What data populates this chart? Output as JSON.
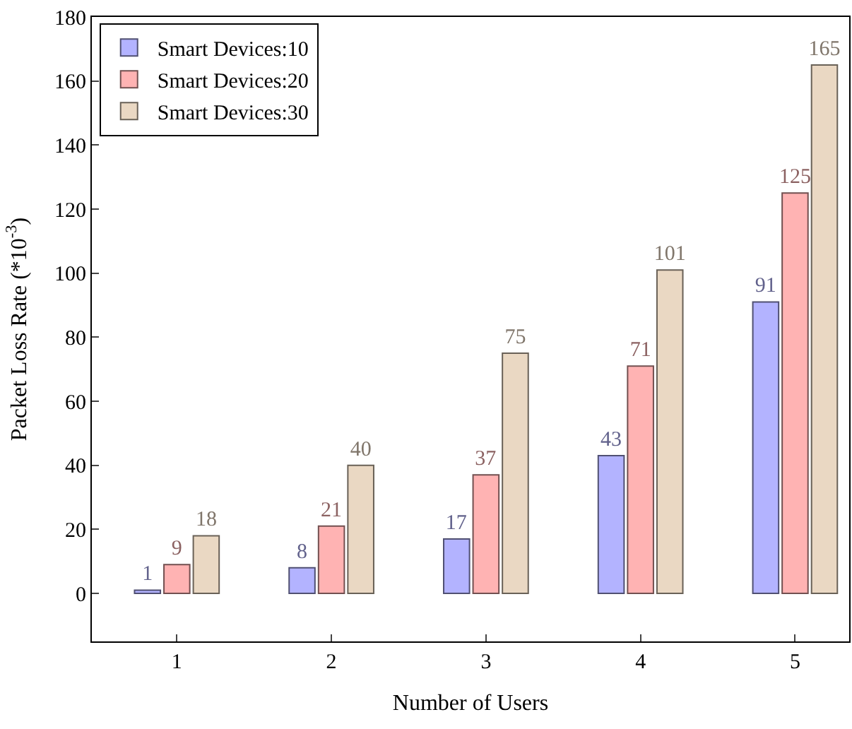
{
  "chart_data": {
    "type": "bar",
    "xlabel": "Number of Users",
    "ylabel": "Packet Loss Rate (*10$^{-3}$)",
    "x": [
      1,
      2,
      3,
      4,
      5
    ],
    "series": [
      {
        "name": "Smart Devices:10",
        "color": "#b3b3ff",
        "values": [
          1,
          8,
          17,
          43,
          91
        ]
      },
      {
        "name": "Smart Devices:20",
        "color": "#ffb3b3",
        "values": [
          9,
          21,
          37,
          71,
          125
        ]
      },
      {
        "name": "Smart Devices:30",
        "color": "#ead8c3",
        "values": [
          18,
          40,
          75,
          101,
          165
        ]
      }
    ],
    "xlim": [
      0.45,
      5.35
    ],
    "xticks": [
      1,
      2,
      3,
      4,
      5
    ],
    "ylim": [
      -15,
      180
    ],
    "yticks": [
      0,
      20,
      40,
      60,
      80,
      100,
      120,
      140,
      160,
      180
    ],
    "data_labels": true,
    "legend": "top left"
  }
}
